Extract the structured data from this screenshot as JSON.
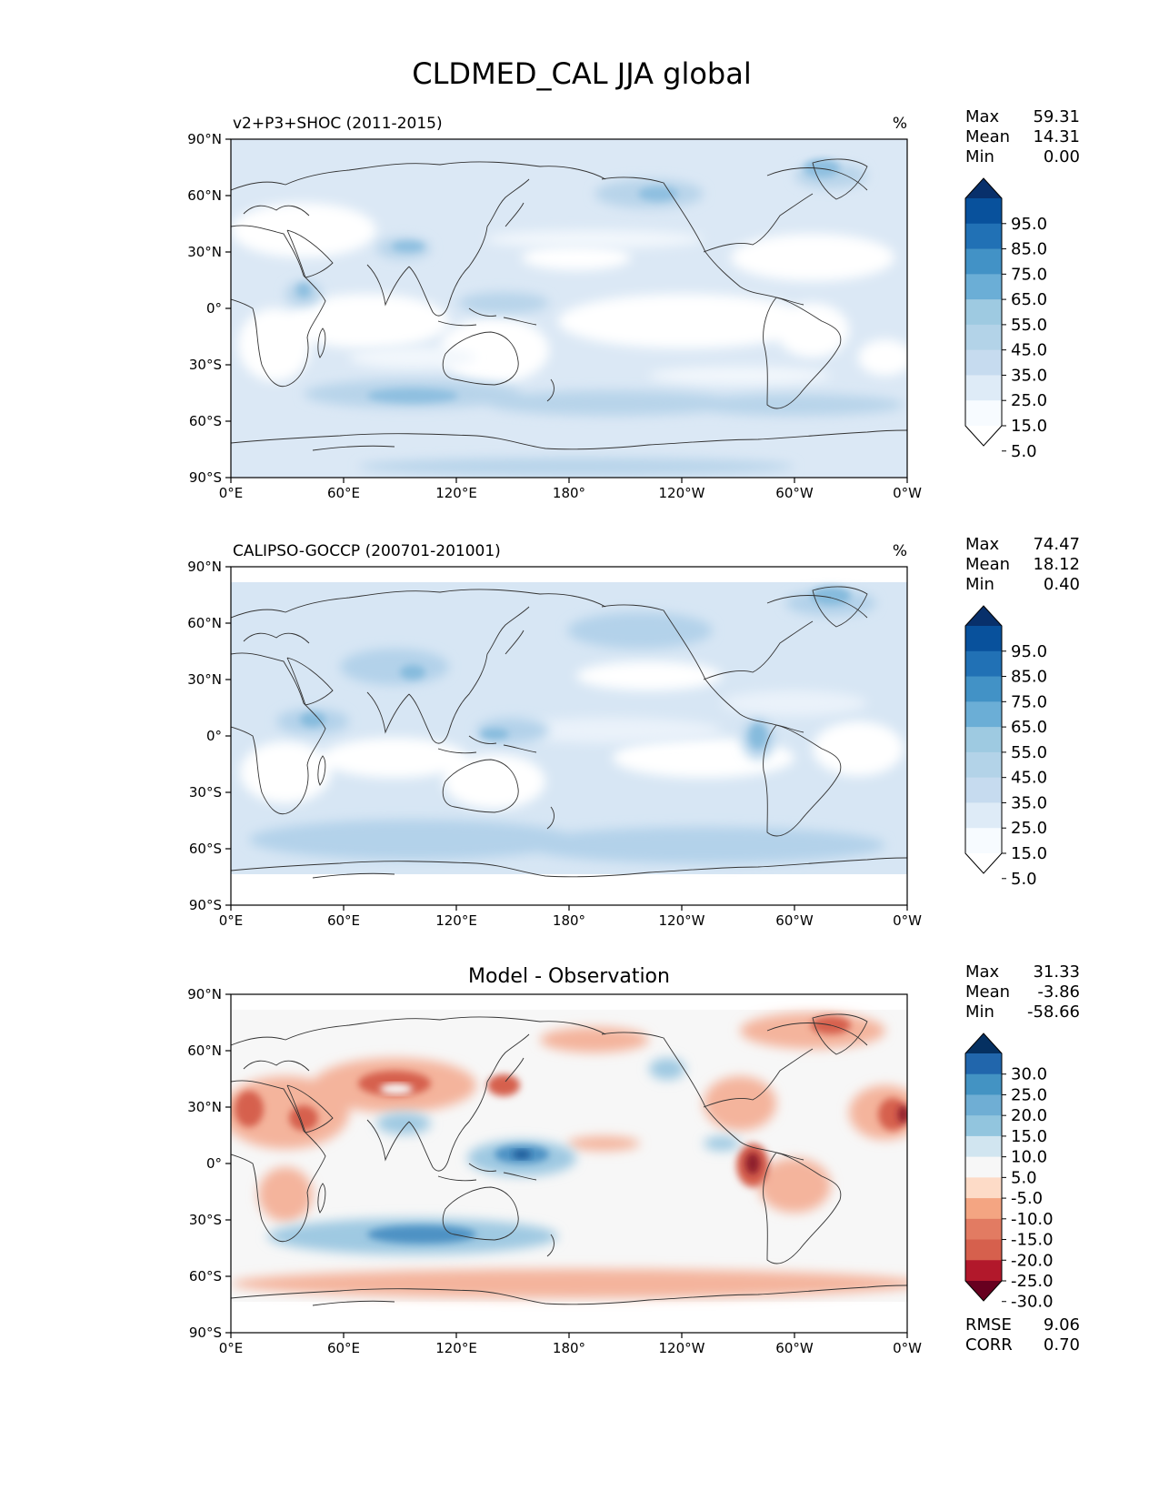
{
  "title": "CLDMED_CAL JJA global",
  "xticks": [
    "0°E",
    "60°E",
    "120°E",
    "180°",
    "120°W",
    "60°W",
    "0°W"
  ],
  "yticks": [
    "90°N",
    "60°N",
    "30°N",
    "0°",
    "30°S",
    "60°S",
    "90°S"
  ],
  "panels": [
    {
      "id": "model",
      "left_title": "v2+P3+SHOC (2011-2015)",
      "units": "%",
      "stats": [
        {
          "label": "Max",
          "value": "59.31"
        },
        {
          "label": "Mean",
          "value": "14.31"
        },
        {
          "label": "Min",
          "value": "0.00"
        }
      ],
      "colorbar": {
        "labels": [
          "95.0",
          "85.0",
          "75.0",
          "65.0",
          "55.0",
          "45.0",
          "35.0",
          "25.0",
          "15.0",
          "5.0"
        ],
        "colors": [
          "#08306b",
          "#08519c",
          "#2171b5",
          "#4292c6",
          "#6baed6",
          "#9ecae1",
          "#b3d3e8",
          "#c6dbef",
          "#deebf7",
          "#f7fbff",
          "#ffffff"
        ]
      }
    },
    {
      "id": "obs",
      "left_title": "CALIPSO-GOCCP (200701-201001)",
      "units": "%",
      "stats": [
        {
          "label": "Max",
          "value": "74.47"
        },
        {
          "label": "Mean",
          "value": "18.12"
        },
        {
          "label": "Min",
          "value": "0.40"
        }
      ],
      "colorbar": {
        "labels": [
          "95.0",
          "85.0",
          "75.0",
          "65.0",
          "55.0",
          "45.0",
          "35.0",
          "25.0",
          "15.0",
          "5.0"
        ],
        "colors": [
          "#08306b",
          "#08519c",
          "#2171b5",
          "#4292c6",
          "#6baed6",
          "#9ecae1",
          "#b3d3e8",
          "#c6dbef",
          "#deebf7",
          "#f7fbff",
          "#ffffff"
        ]
      }
    },
    {
      "id": "diff",
      "center_title": "Model - Observation",
      "stats": [
        {
          "label": "Max",
          "value": "31.33"
        },
        {
          "label": "Mean",
          "value": "-3.86"
        },
        {
          "label": "Min",
          "value": "-58.66"
        }
      ],
      "colorbar": {
        "labels": [
          "30.0",
          "25.0",
          "20.0",
          "15.0",
          "10.0",
          "5.0",
          "-5.0",
          "-10.0",
          "-15.0",
          "-20.0",
          "-25.0",
          "-30.0"
        ],
        "colors": [
          "#053061",
          "#2166ac",
          "#4393c3",
          "#6faed4",
          "#92c5de",
          "#d1e5f0",
          "#f7f7f7",
          "#fddbc7",
          "#f4a582",
          "#e27b62",
          "#d6604d",
          "#b2182b",
          "#67001f"
        ]
      },
      "bottom_stats": [
        {
          "label": "RMSE",
          "value": "9.06"
        },
        {
          "label": "CORR",
          "value": "0.70"
        }
      ]
    }
  ],
  "colors": {
    "ocean_model": "#dbe8f5",
    "ocean_obs": "#d7e6f4",
    "diff_bg": "#f7f7f7",
    "coast": "#333333"
  }
}
